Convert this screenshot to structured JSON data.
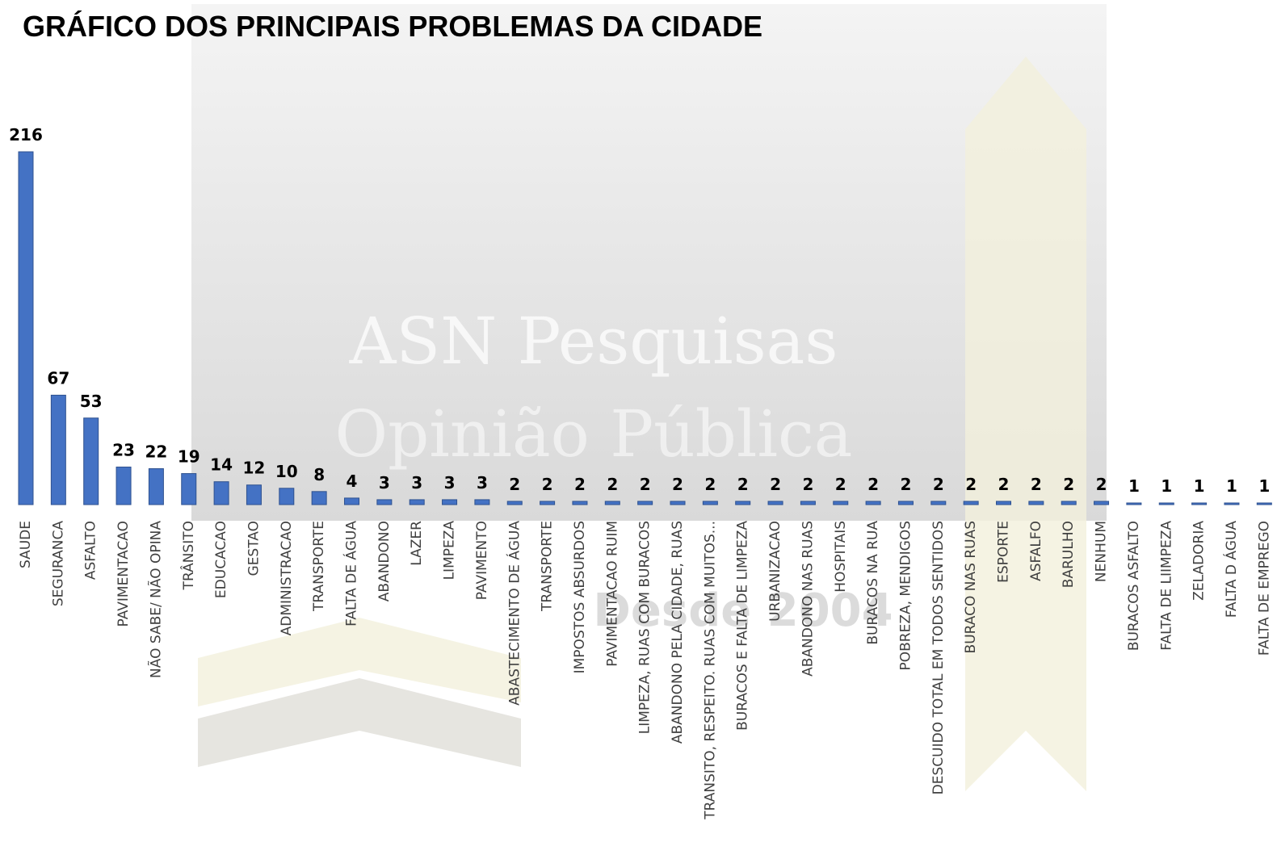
{
  "chart_data": {
    "type": "bar",
    "title": "GRÁFICO DOS PRINCIPAIS PROBLEMAS DA CIDADE",
    "watermark": [
      "ASN Pesquisas",
      "Opinião Pública",
      "Desde 2004"
    ],
    "color": "#4472c4",
    "categories": [
      "SAUDE",
      "SEGURANCA",
      "ASFALTO",
      "PAVIMENTACAO",
      "NÃO SABE/ NÃO OPINA",
      "TRÂNSITO",
      "EDUCACAO",
      "GESTAO",
      "ADMINISTRACAO",
      "TRANSPORTE",
      "FALTA DE ÁGUA",
      "ABANDONO",
      "LAZER",
      "LIMPEZA",
      "PAVIMENTO",
      "ABASTECIMENTO DE ÁGUA",
      "TRANSPORTE",
      "IMPOSTOS ABSURDOS",
      "PAVIMENTACAO RUIM",
      "LIMPEZA, RUAS COM BURACOS",
      "ABANDONO PELA CIDADE, RUAS",
      "TRANSITO, RESPEITO. RUAS COM MUITOS...",
      "BURACOS E FALTA DE LIMPEZA",
      "URBANIZACAO",
      "ABANDONO NAS RUAS",
      "HOSPITAIS",
      "BURACOS NA RUA",
      "POBREZA, MENDIGOS",
      "DESCUIDO TOTAL EM TODOS SENTIDOS",
      "BURACO NAS RUAS",
      "ESPORTE",
      "ASFALFO",
      "BARULHO",
      "NENHUM",
      "BURACOS ASFALTO",
      "FALTA DE LIIMPEZA",
      "ZELADORIA",
      "FALTA D ÁGUA",
      "FALTA DE EMPREGO"
    ],
    "values": [
      216,
      67,
      53,
      23,
      22,
      19,
      14,
      12,
      10,
      8,
      4,
      3,
      3,
      3,
      3,
      2,
      2,
      2,
      2,
      2,
      2,
      2,
      2,
      2,
      2,
      2,
      2,
      2,
      2,
      2,
      2,
      2,
      2,
      2,
      1,
      1,
      1,
      1,
      1
    ]
  }
}
